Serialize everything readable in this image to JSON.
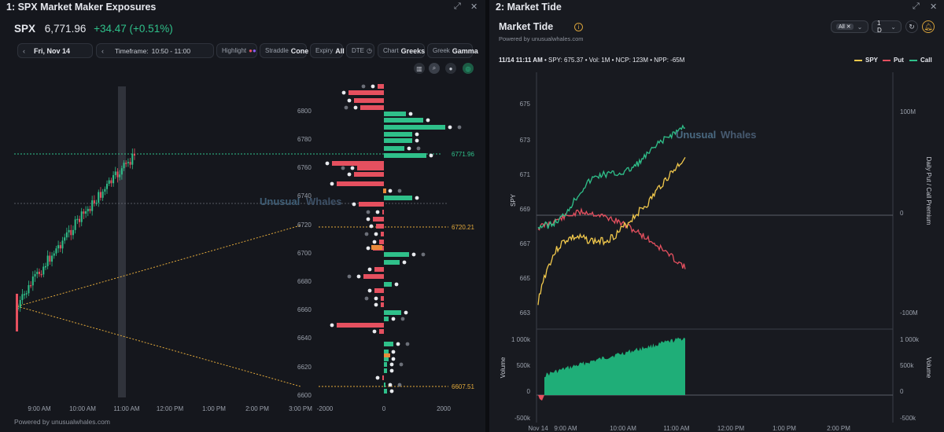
{
  "panel1": {
    "title": "1: SPX Market Maker Exposures",
    "ticker": "SPX",
    "price": "6,771.96",
    "change": "+34.47",
    "change_pct": "(+0.51%)",
    "date": "Fri, Nov 14",
    "timeframe_label": "Timeframe:",
    "timeframe_value": "10:50 - 11:00",
    "highlight_label": "Highlight",
    "straddle_label": "Straddle",
    "straddle_value": "Cone",
    "expiry_label": "Expiry",
    "expiry_value": "All",
    "dte_label": "DTE",
    "chart_label": "Chart",
    "chart_value": "Greeks",
    "greek_label": "Greek",
    "greek_value": "Gamma",
    "footer": "Powered by unusualwhales.com",
    "watermark_a": "Unusual",
    "watermark_b": "Whales",
    "time_ticks": [
      "9:00 AM",
      "10:00 AM",
      "11:00 AM",
      "12:00 PM",
      "1:00 PM",
      "2:00 PM",
      "3:00 PM"
    ],
    "price_ticks": [
      "6800",
      "6780",
      "6760",
      "6740",
      "6720",
      "6700",
      "6680",
      "6660",
      "6640",
      "6620",
      "6600"
    ],
    "exposure_ticks": [
      "-2000",
      "0",
      "2000"
    ],
    "current_price_label": "6771.96",
    "cone_upper_label": "6720.21",
    "cone_lower_label": "6607.51",
    "colors": {
      "up": "#2fc08a",
      "down": "#e5505f",
      "cone": "#e2a93b",
      "price_line": "#2fc08a"
    }
  },
  "panel2": {
    "title": "2: Market Tide",
    "heading": "Market Tide",
    "powered": "Powered by unusualwhales.com",
    "filter_value": "All",
    "range_value": "1 D",
    "info_date": "11/14 11:11 AM",
    "info_spy": "SPY: 675.37",
    "info_vol": "Vol: 1M",
    "info_ncp": "NCP: 123M",
    "info_npp": "NPP: -65M",
    "legend": [
      "SPY",
      "Put",
      "Call"
    ],
    "watermark_a": "Unusual",
    "watermark_b": "Whales",
    "spy_ticks": [
      "675",
      "673",
      "671",
      "669",
      "667",
      "665",
      "663"
    ],
    "prem_ticks": [
      "100M",
      "0",
      "-100M"
    ],
    "vol_ticks_left": [
      "1 000k",
      "500k",
      "0",
      "-500k"
    ],
    "vol_ticks_right": [
      "1 000k",
      "500k",
      "0",
      "-500k"
    ],
    "time_ticks": [
      "Nov 14",
      "9:00 AM",
      "10:00 AM",
      "11:00 AM",
      "12:00 PM",
      "1:00 PM",
      "2:00 PM"
    ],
    "y_left_label": "SPY",
    "y_right_label": "Daily Put / Call Premium",
    "vol_label": "Volume",
    "colors": {
      "spy": "#f2c94c",
      "put": "#e5505f",
      "call": "#2fc08a",
      "volume": "#1fae78"
    }
  }
}
